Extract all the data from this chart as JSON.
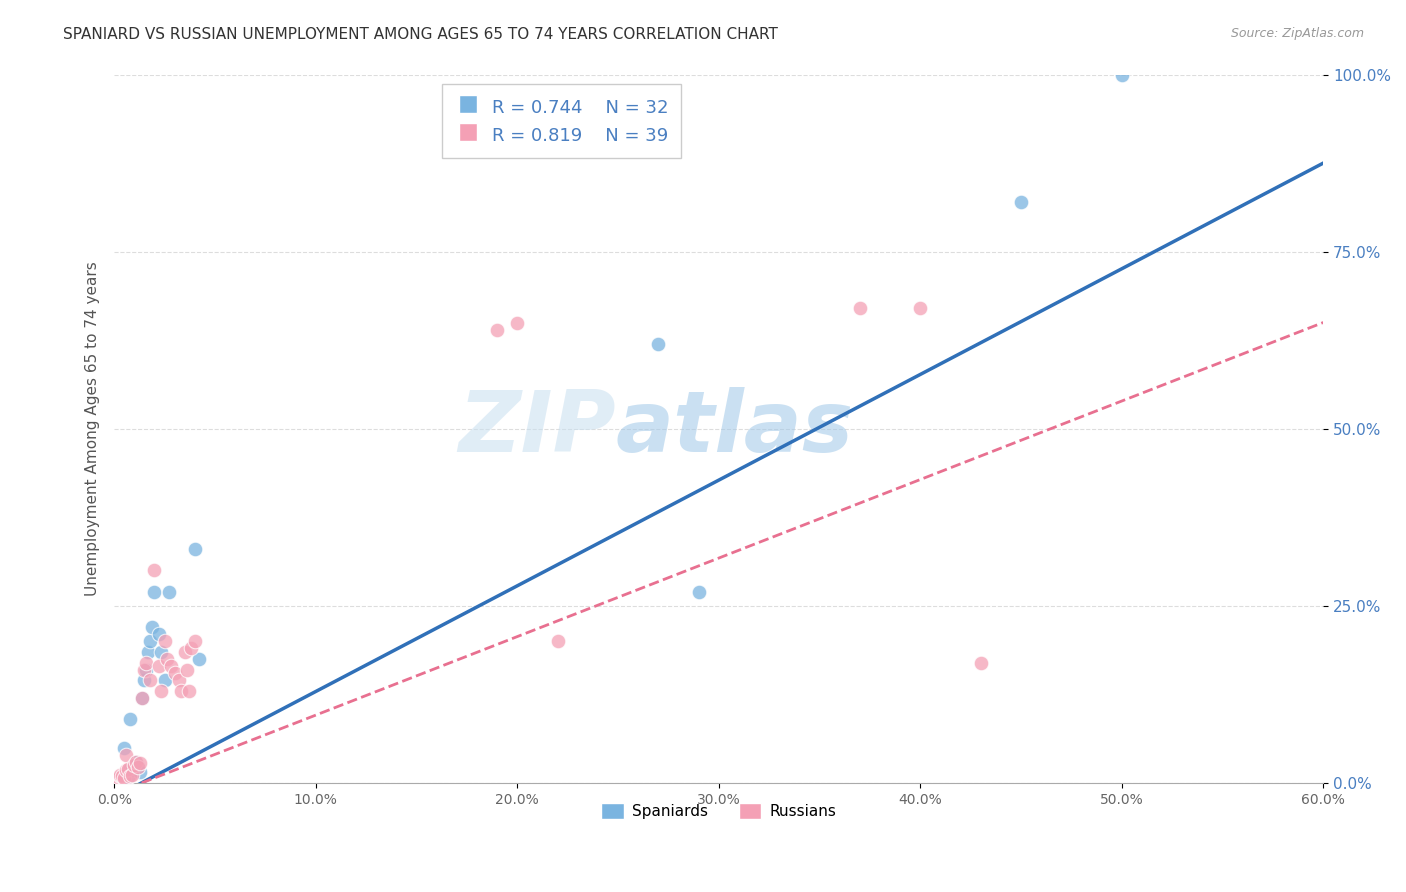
{
  "title": "SPANIARD VS RUSSIAN UNEMPLOYMENT AMONG AGES 65 TO 74 YEARS CORRELATION CHART",
  "source": "Source: ZipAtlas.com",
  "ylabel": "Unemployment Among Ages 65 to 74 years",
  "xlim": [
    0.0,
    0.6
  ],
  "ylim": [
    0.0,
    1.0
  ],
  "xticks": [
    0.0,
    0.1,
    0.2,
    0.3,
    0.4,
    0.5,
    0.6
  ],
  "xtick_labels": [
    "0.0%",
    "10.0%",
    "20.0%",
    "30.0%",
    "40.0%",
    "50.0%",
    "60.0%"
  ],
  "yticks": [
    0.0,
    0.25,
    0.5,
    0.75,
    1.0
  ],
  "ytick_labels": [
    "0.0%",
    "25.0%",
    "50.0%",
    "75.0%",
    "100.0%"
  ],
  "spaniards_color": "#7ab4e0",
  "russians_color": "#f4a0b5",
  "spaniards_line_color": "#3070b8",
  "russians_line_color": "#e87090",
  "spaniards_R": 0.744,
  "spaniards_N": 32,
  "russians_R": 0.819,
  "russians_N": 39,
  "watermark_text": "ZIP",
  "watermark_text2": "atlas",
  "background_color": "#ffffff",
  "grid_color": "#dddddd",
  "sp_line_x0": 0.0,
  "sp_line_y0": -0.02,
  "sp_line_x1": 0.6,
  "sp_line_y1": 0.875,
  "ru_line_x0": 0.0,
  "ru_line_y0": -0.015,
  "ru_line_x1": 0.6,
  "ru_line_y1": 0.65,
  "spaniards_x": [
    0.001,
    0.002,
    0.003,
    0.004,
    0.005,
    0.005,
    0.006,
    0.007,
    0.008,
    0.008,
    0.009,
    0.01,
    0.011,
    0.012,
    0.013,
    0.014,
    0.015,
    0.016,
    0.017,
    0.018,
    0.019,
    0.02,
    0.022,
    0.023,
    0.025,
    0.027,
    0.04,
    0.042,
    0.27,
    0.29,
    0.45,
    0.5
  ],
  "spaniards_y": [
    0.005,
    0.008,
    0.01,
    0.006,
    0.012,
    0.05,
    0.01,
    0.008,
    0.02,
    0.09,
    0.018,
    0.025,
    0.03,
    0.022,
    0.015,
    0.12,
    0.145,
    0.16,
    0.185,
    0.2,
    0.22,
    0.27,
    0.21,
    0.185,
    0.145,
    0.27,
    0.33,
    0.175,
    0.62,
    0.27,
    0.82,
    1.0
  ],
  "russians_x": [
    0.001,
    0.002,
    0.003,
    0.003,
    0.004,
    0.005,
    0.006,
    0.006,
    0.007,
    0.008,
    0.009,
    0.01,
    0.011,
    0.012,
    0.013,
    0.014,
    0.015,
    0.016,
    0.018,
    0.02,
    0.022,
    0.023,
    0.025,
    0.026,
    0.028,
    0.03,
    0.032,
    0.033,
    0.035,
    0.036,
    0.037,
    0.038,
    0.04,
    0.19,
    0.2,
    0.22,
    0.37,
    0.4,
    0.43
  ],
  "russians_y": [
    0.005,
    0.008,
    0.01,
    0.012,
    0.01,
    0.007,
    0.018,
    0.04,
    0.02,
    0.01,
    0.012,
    0.025,
    0.03,
    0.022,
    0.028,
    0.12,
    0.16,
    0.17,
    0.145,
    0.3,
    0.165,
    0.13,
    0.2,
    0.175,
    0.165,
    0.155,
    0.145,
    0.13,
    0.185,
    0.16,
    0.13,
    0.19,
    0.2,
    0.64,
    0.65,
    0.2,
    0.67,
    0.67,
    0.17
  ]
}
